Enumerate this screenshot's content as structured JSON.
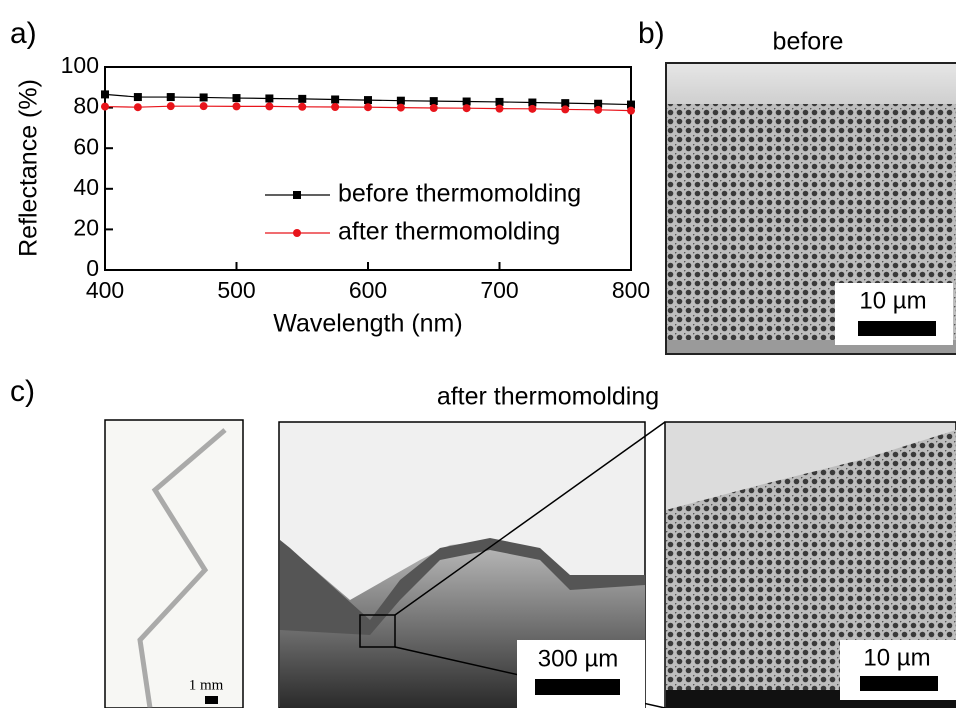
{
  "chart_data": {
    "type": "line",
    "x_label": "Wavelength (nm)",
    "y_label": "Reflectance (%)",
    "x": [
      400,
      425,
      450,
      475,
      500,
      525,
      550,
      575,
      600,
      625,
      650,
      675,
      700,
      725,
      750,
      775,
      800
    ],
    "series": [
      {
        "name": "before thermomolding",
        "color": "#000000",
        "marker": "square",
        "values": [
          86.5,
          85.2,
          85.2,
          85.0,
          84.7,
          84.5,
          84.3,
          84.0,
          83.7,
          83.4,
          83.2,
          83.0,
          82.8,
          82.5,
          82.2,
          81.9,
          81.5
        ]
      },
      {
        "name": "after thermomolding",
        "color": "#e8141b",
        "marker": "circle",
        "values": [
          80.5,
          80.2,
          80.7,
          80.7,
          80.6,
          80.6,
          80.4,
          80.3,
          80.2,
          80.0,
          79.8,
          79.7,
          79.5,
          79.4,
          79.1,
          78.9,
          78.5
        ]
      }
    ],
    "xlim": [
      400,
      800
    ],
    "ylim": [
      0,
      100
    ],
    "xticks": [
      400,
      500,
      600,
      700,
      800
    ],
    "yticks": [
      0,
      20,
      40,
      60,
      80,
      100
    ],
    "legend": "lower-right"
  },
  "figure": {
    "label_a": "a)",
    "label_b": "b)",
    "label_c": "c)",
    "title_b": "before",
    "title_c": "after thermomolding",
    "scale_b": "10 µm",
    "scale_c_photo": "1 mm",
    "scale_c_middle": "300 µm",
    "scale_c_right": "10 µm"
  }
}
